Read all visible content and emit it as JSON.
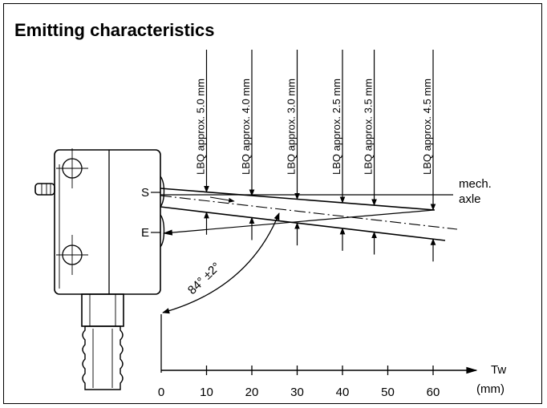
{
  "title": "Emitting characteristics",
  "labels": {
    "sender": "S",
    "emitter": "E",
    "mech_axle_line1": "mech.",
    "mech_axle_line2": "axle",
    "angle": "84° ±2°",
    "axis_unit_name": "Tw",
    "axis_unit": "(mm)"
  },
  "lbq_labels": [
    "LBQ approx. 5.0 mm",
    "LBQ approx. 4.0 mm",
    "LBQ approx. 3.0 mm",
    "LBQ approx. 2.5 mm",
    "LBQ approx. 3.5 mm",
    "LBQ approx. 4.5 mm"
  ],
  "lbq_positions_mm": [
    10,
    20,
    30,
    40,
    47,
    60
  ],
  "axis": {
    "ticks": [
      0,
      10,
      20,
      30,
      40,
      50,
      60
    ]
  },
  "colors": {
    "ink": "#000000",
    "background": "#ffffff"
  }
}
